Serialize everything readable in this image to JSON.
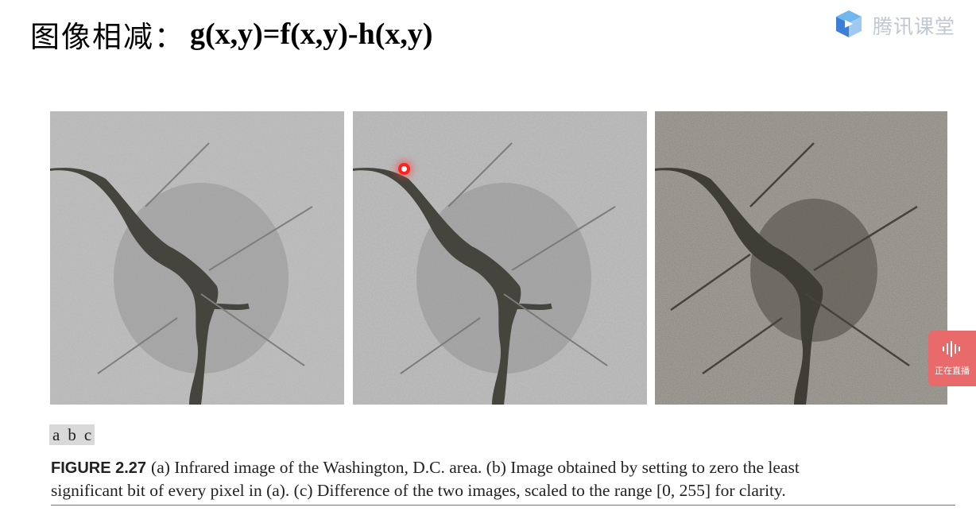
{
  "slide": {
    "title_cn": "图像相减：",
    "title_formula": "g(x,y)=f(x,y)-h(x,y)"
  },
  "brand": {
    "name": "腾讯课堂",
    "icon": "tencent-classroom-logo-icon",
    "icon_color": "#4a8fd9"
  },
  "figure": {
    "panels": [
      "a",
      "b",
      "c"
    ],
    "images": [
      {
        "name": "infrared-image-washington"
      },
      {
        "name": "lsb-zeroed-image"
      },
      {
        "name": "difference-image"
      }
    ],
    "caption_label": "FIGURE 2.27",
    "caption_line1": "(a) Infrared image of the Washington, D.C. area. (b) Image obtained by setting to zero the least",
    "caption_line2": "significant bit of every pixel in (a). (c) Difference of the two images, scaled to the range [0, 255] for clarity."
  },
  "live": {
    "status_text": "正在直播",
    "icon": "audio-wave-icon",
    "badge_color": "#e96a6a"
  }
}
